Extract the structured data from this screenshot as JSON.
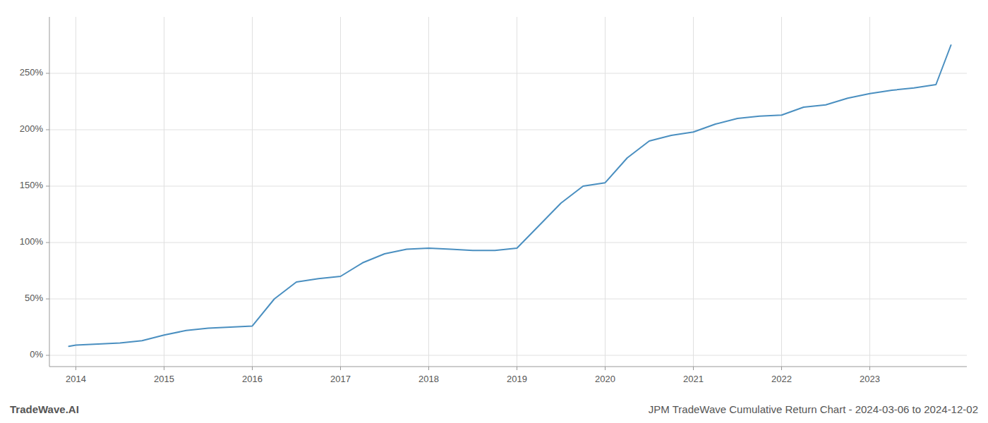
{
  "chart_data": {
    "type": "line",
    "title": "JPM TradeWave Cumulative Return Chart - 2024-03-06 to 2024-12-02",
    "annotations": [
      "TradeWave.AI"
    ],
    "color": "#4a8fc0",
    "grid": true,
    "x": [
      2013.92,
      2014.0,
      2014.25,
      2014.5,
      2014.75,
      2015.0,
      2015.25,
      2015.5,
      2015.75,
      2016.0,
      2016.25,
      2016.5,
      2016.75,
      2017.0,
      2017.25,
      2017.5,
      2017.75,
      2018.0,
      2018.25,
      2018.5,
      2018.75,
      2019.0,
      2019.25,
      2019.5,
      2019.75,
      2020.0,
      2020.25,
      2020.5,
      2020.75,
      2021.0,
      2021.25,
      2021.5,
      2021.75,
      2022.0,
      2022.25,
      2022.5,
      2022.75,
      2023.0,
      2023.25,
      2023.5,
      2023.75,
      2023.92
    ],
    "values": [
      8,
      9,
      10,
      11,
      13,
      18,
      22,
      24,
      25,
      26,
      50,
      65,
      68,
      70,
      82,
      90,
      94,
      95,
      94,
      93,
      93,
      95,
      115,
      135,
      150,
      153,
      175,
      190,
      195,
      198,
      205,
      210,
      212,
      213,
      220,
      222,
      228,
      232,
      235,
      237,
      240,
      275
    ],
    "xlim": [
      2013.7,
      2024.1
    ],
    "xticks": [
      2014,
      2015,
      2016,
      2017,
      2018,
      2019,
      2020,
      2021,
      2022,
      2023
    ],
    "ylim": [
      -10,
      300
    ],
    "yticks": [
      {
        "value": 0,
        "label": "0%"
      },
      {
        "value": 50,
        "label": "50%"
      },
      {
        "value": 100,
        "label": "100%"
      },
      {
        "value": 150,
        "label": "150%"
      },
      {
        "value": 200,
        "label": "200%"
      },
      {
        "value": 250,
        "label": "250%"
      }
    ]
  }
}
